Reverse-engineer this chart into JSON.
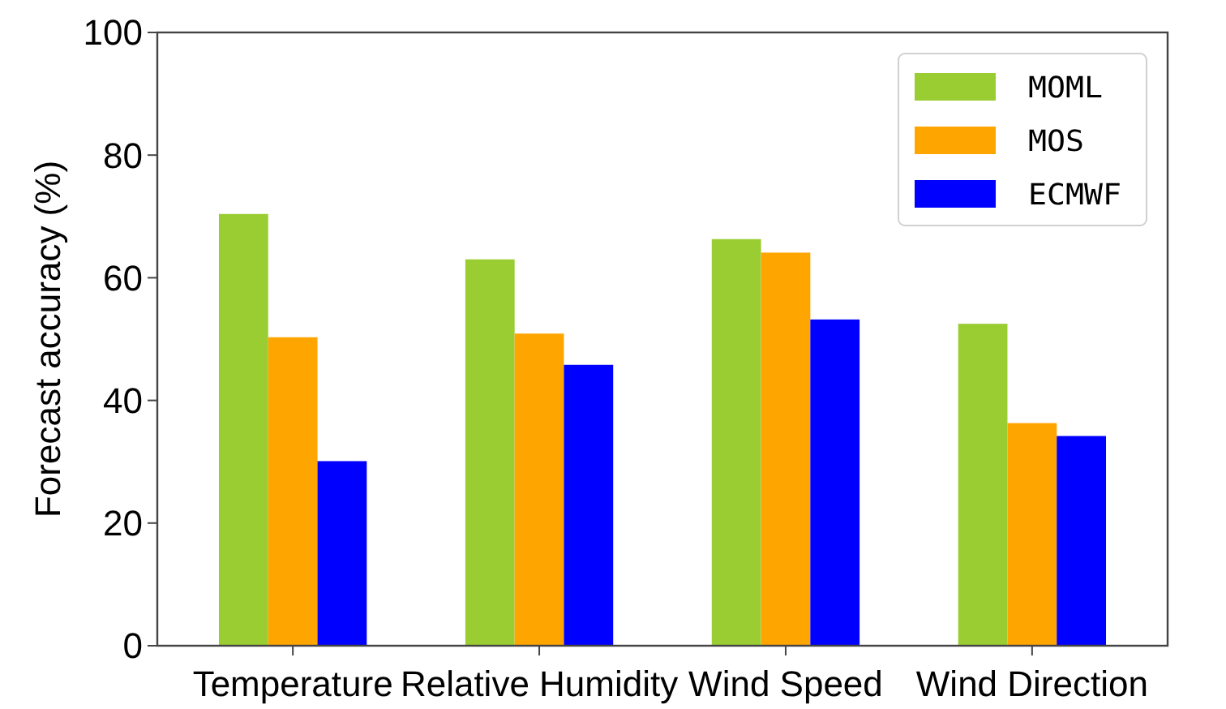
{
  "chart_data": {
    "type": "bar",
    "ylabel": "Forecast accuracy (%)",
    "categories": [
      "Temperature",
      "Relative Humidity",
      "Wind Speed",
      "Wind Direction"
    ],
    "series": [
      {
        "name": "MOML",
        "color": "#9acd32",
        "values": [
          70.4,
          63.0,
          66.3,
          52.5
        ]
      },
      {
        "name": "MOS",
        "color": "#ffa500",
        "values": [
          50.3,
          50.9,
          64.1,
          36.3
        ]
      },
      {
        "name": "ECMWF",
        "color": "#0000ff",
        "values": [
          30.1,
          45.8,
          53.2,
          34.2
        ]
      }
    ],
    "ylim": [
      0,
      100
    ],
    "yticks": [
      0,
      20,
      40,
      60,
      80,
      100
    ],
    "grid": false,
    "legend": "top right"
  }
}
